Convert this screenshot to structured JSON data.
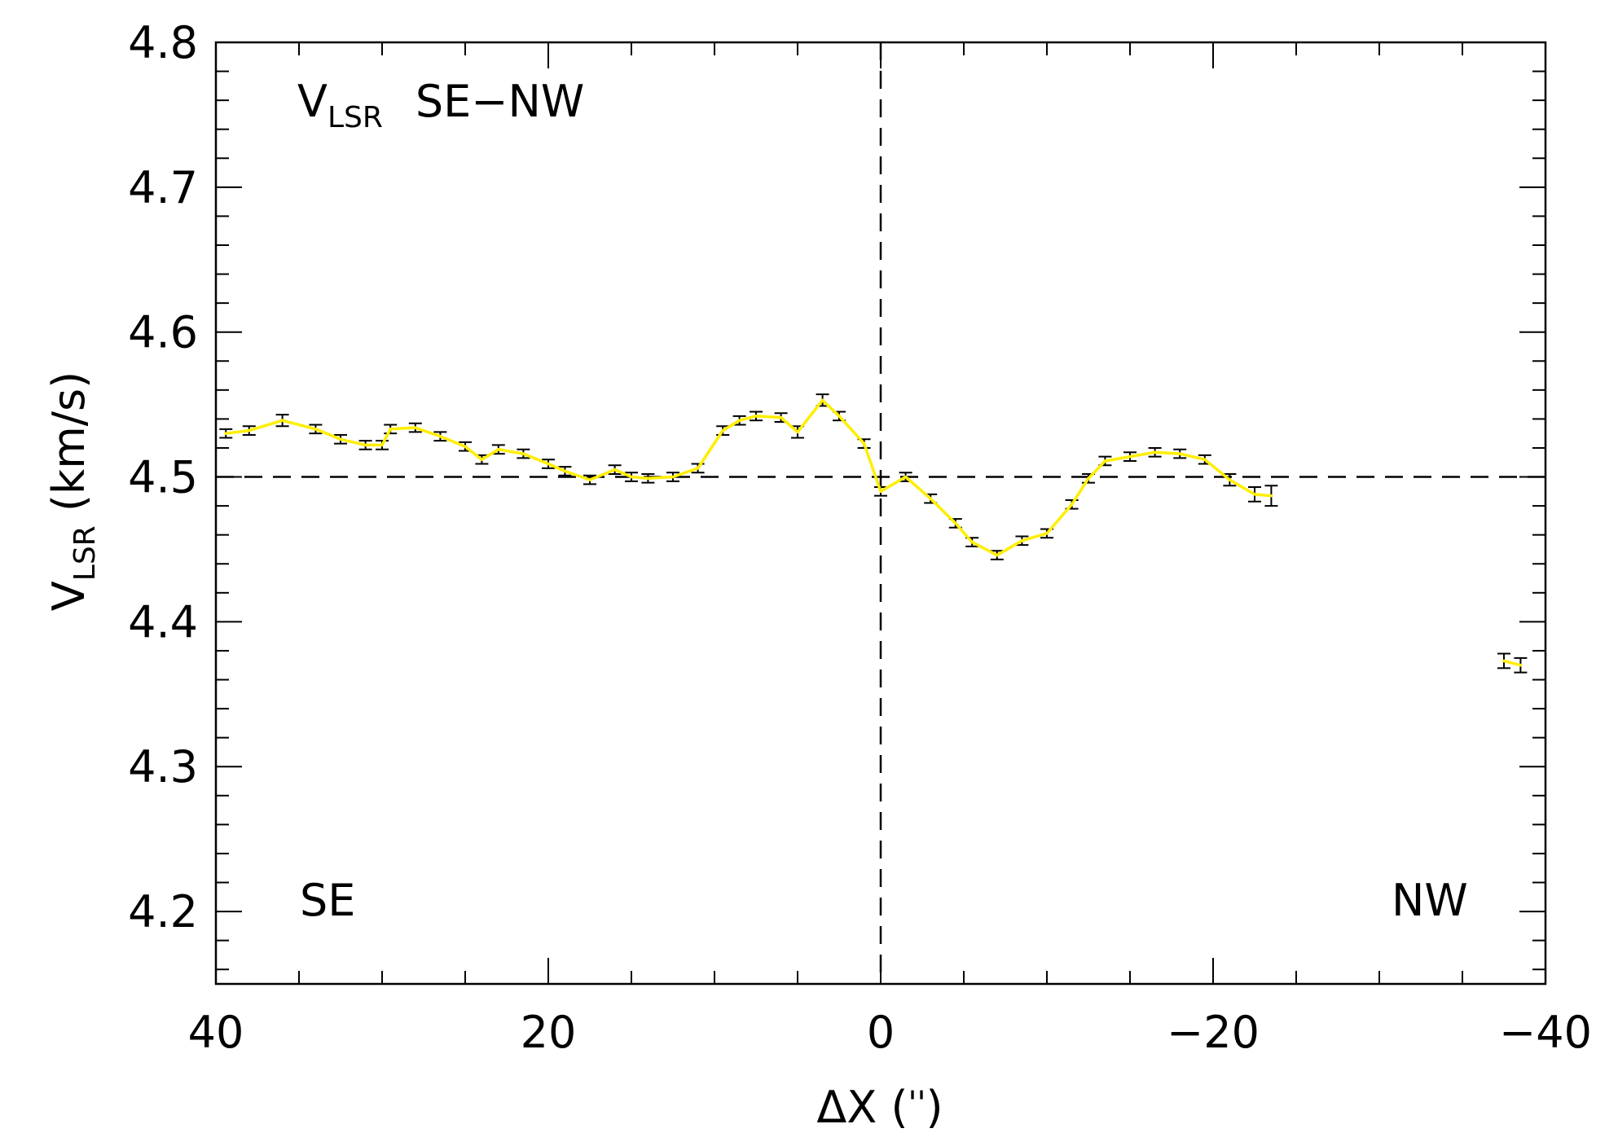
{
  "chart_data": {
    "type": "line",
    "title": "V_LSR  SE–NW",
    "title_main": "V",
    "title_sub": "LSR",
    "title_rest": "SE−NW",
    "xlabel": "ΔX ('')",
    "xlabel_main": "ΔX (",
    "xlabel_quote": "''",
    "xlabel_close": ")",
    "ylabel": "V_LSR (km/s)",
    "ylabel_main": "V",
    "ylabel_sub": "LSR",
    "ylabel_rest": " (km/s)",
    "xlim": [
      40,
      -40
    ],
    "ylim": [
      4.15,
      4.8
    ],
    "x_ticks": [
      "40",
      "20",
      "0",
      "−20",
      "−40"
    ],
    "y_ticks": [
      "4.2",
      "4.3",
      "4.4",
      "4.5",
      "4.6",
      "4.7",
      "4.8"
    ],
    "reference_lines": {
      "x": 0,
      "y": 4.5,
      "style": "dashed"
    },
    "annotations": {
      "left": "SE",
      "right": "NW"
    },
    "line_color": "#ffee00",
    "errorbar_color": "#000000",
    "series": [
      {
        "x": [
          39.4,
          38.0,
          36.0,
          34.0,
          32.5,
          31.0,
          30.0,
          29.5,
          28.0,
          26.5,
          25.0,
          24.0,
          23.0,
          21.5,
          20.0,
          19.0,
          17.5,
          16.0,
          15.0,
          14.0,
          12.5,
          11.0,
          9.5,
          8.5,
          7.5,
          6.0,
          5.0,
          3.5,
          2.5,
          1.0,
          0.0,
          -1.5,
          -3.0,
          -4.5,
          -5.5,
          -7.0,
          -8.5,
          -10.0,
          -11.5,
          -12.5,
          -13.5,
          -15.0,
          -16.5,
          -18.0,
          -19.5,
          -21.0,
          -22.5,
          -23.5
        ],
        "y": [
          4.53,
          4.532,
          4.539,
          4.533,
          4.526,
          4.522,
          4.522,
          4.533,
          4.534,
          4.528,
          4.521,
          4.512,
          4.519,
          4.516,
          4.509,
          4.504,
          4.498,
          4.505,
          4.5,
          4.499,
          4.5,
          4.506,
          4.532,
          4.539,
          4.542,
          4.541,
          4.531,
          4.553,
          4.542,
          4.523,
          4.49,
          4.5,
          4.485,
          4.468,
          4.455,
          4.446,
          4.456,
          4.461,
          4.481,
          4.499,
          4.511,
          4.514,
          4.517,
          4.516,
          4.512,
          4.498,
          4.488,
          4.487
        ],
        "err": [
          0.003,
          0.003,
          0.004,
          0.003,
          0.003,
          0.003,
          0.003,
          0.003,
          0.003,
          0.003,
          0.003,
          0.003,
          0.003,
          0.003,
          0.003,
          0.003,
          0.003,
          0.003,
          0.003,
          0.003,
          0.003,
          0.003,
          0.003,
          0.003,
          0.003,
          0.003,
          0.004,
          0.004,
          0.003,
          0.003,
          0.003,
          0.003,
          0.003,
          0.003,
          0.003,
          0.003,
          0.003,
          0.003,
          0.003,
          0.003,
          0.003,
          0.003,
          0.003,
          0.003,
          0.003,
          0.004,
          0.005,
          0.007
        ]
      },
      {
        "x": [
          -37.5,
          -38.5
        ],
        "y": [
          4.373,
          4.37
        ],
        "err": [
          0.005,
          0.005
        ]
      }
    ]
  }
}
